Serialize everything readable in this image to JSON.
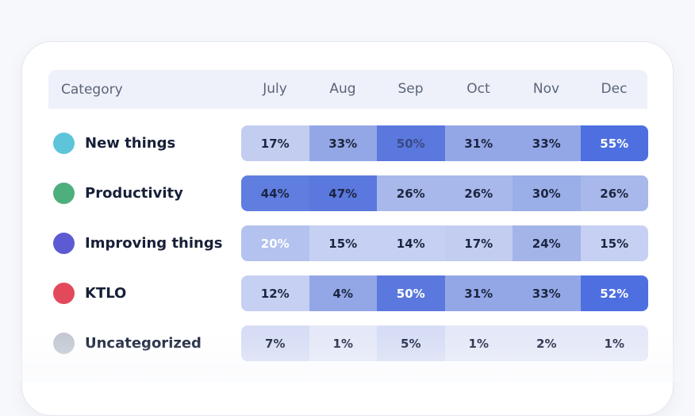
{
  "header": {
    "category_label": "Category"
  },
  "chart_data": {
    "type": "table",
    "columns": [
      "July",
      "Aug",
      "Sep",
      "Oct",
      "Nov",
      "Dec"
    ],
    "rows": [
      {
        "label": "New things",
        "dot_color": "#5ec4da",
        "values": [
          17,
          33,
          50,
          31,
          33,
          55
        ],
        "display": [
          "17%",
          "33%",
          "50%",
          "31%",
          "33%",
          "55%"
        ]
      },
      {
        "label": "Productivity",
        "dot_color": "#4daf7c",
        "values": [
          44,
          47,
          26,
          26,
          30,
          26
        ],
        "display": [
          "44%",
          "47%",
          "26%",
          "26%",
          "30%",
          "26%"
        ]
      },
      {
        "label": "Improving things",
        "dot_color": "#5d5bd1",
        "values": [
          20,
          15,
          14,
          17,
          24,
          15
        ],
        "display": [
          "20%",
          "15%",
          "14%",
          "17%",
          "24%",
          "15%"
        ]
      },
      {
        "label": "KTLO",
        "dot_color": "#e2495a",
        "values": [
          12,
          4,
          50,
          31,
          33,
          52
        ],
        "display": [
          "12%",
          "4%",
          "50%",
          "31%",
          "33%",
          "52%"
        ]
      },
      {
        "label": "Uncategorized",
        "dot_color": "#c2c7d1",
        "values": [
          7,
          1,
          5,
          1,
          2,
          1
        ],
        "display": [
          "7%",
          "1%",
          "5%",
          "1%",
          "2%",
          "1%"
        ]
      }
    ],
    "cell_colors": [
      [
        "#c3cdf0",
        "#93a7e6",
        "#5a78dd",
        "#93a7e6",
        "#93a7e6",
        "#4d6fe0"
      ],
      [
        "#5f7ee0",
        "#5a78dd",
        "#a8b8ea",
        "#a8b8ea",
        "#9aaee7",
        "#a8b8ea"
      ],
      [
        "#b3c2ee",
        "#c6d0f2",
        "#c6d0f2",
        "#c3cdf0",
        "#a3b4e9",
        "#c6d0f2"
      ],
      [
        "#c6d0f2",
        "#93a7e6",
        "#5a78dd",
        "#93a7e6",
        "#93a7e6",
        "#4d6fe0"
      ],
      [
        "#d6ddf5",
        "#e4e8f8",
        "#d6ddf5",
        "#e4e8f8",
        "#e4e8f8",
        "#e4e8f8"
      ]
    ],
    "cell_text_colors": [
      [
        "#1c2540",
        "#1c2540",
        "#3a4a86",
        "#1c2540",
        "#1c2540",
        "#ffffff"
      ],
      [
        "#1c2540",
        "#1c2540",
        "#1c2540",
        "#1c2540",
        "#1c2540",
        "#1c2540"
      ],
      [
        "#ffffff",
        "#1c2540",
        "#1c2540",
        "#1c2540",
        "#1c2540",
        "#1c2540"
      ],
      [
        "#1c2540",
        "#1c2540",
        "#ffffff",
        "#1c2540",
        "#1c2540",
        "#ffffff"
      ],
      [
        "#1c2540",
        "#1c2540",
        "#1c2540",
        "#1c2540",
        "#1c2540",
        "#1c2540"
      ]
    ]
  }
}
